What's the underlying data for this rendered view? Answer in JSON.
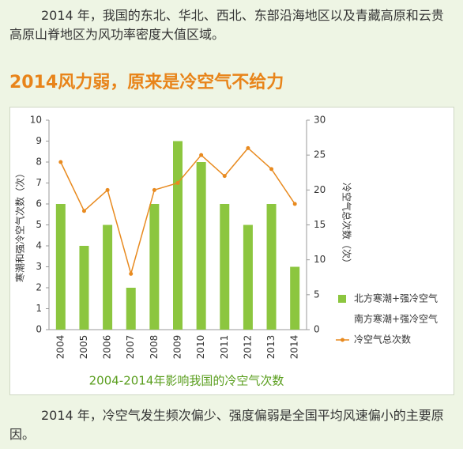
{
  "paragraph_top": "2014 年，我国的东北、华北、西北、东部沿海地区以及青藏高原和云贵高原山脊地区为风功率密度大值区域。",
  "heading": "2014风力弱，原来是冷空气不给力",
  "chart_data": {
    "type": "bar",
    "title": "2004-2014年影响我国的冷空气次数",
    "ylabel": "寒潮和强冷空气次数（次）",
    "y2label": "冷空气总次数（次）",
    "categories": [
      "2004",
      "2005",
      "2006",
      "2007",
      "2008",
      "2009",
      "2010",
      "2011",
      "2012",
      "2013",
      "2014"
    ],
    "series": [
      {
        "name": "北方寒潮+强冷空气",
        "color": "#8cc63f",
        "values": [
          6,
          4,
          5,
          2,
          6,
          9,
          8,
          6,
          5,
          6,
          3
        ]
      },
      {
        "name": "南方寒潮+强冷空气",
        "color": "#ffffff",
        "values": [
          0,
          0,
          0,
          0,
          0,
          0,
          0,
          0,
          0,
          0,
          0
        ]
      },
      {
        "name": "冷空气总次数",
        "color": "#e88a1f",
        "type": "line",
        "axis": "y2",
        "values": [
          24,
          17,
          20,
          8,
          20,
          21,
          25,
          22,
          26,
          23,
          18
        ]
      }
    ],
    "ylim": [
      0,
      10
    ],
    "yticks": [
      0,
      1,
      2,
      3,
      4,
      5,
      6,
      7,
      8,
      9,
      10
    ],
    "y2lim": [
      0,
      30
    ],
    "y2ticks": [
      0,
      5,
      10,
      15,
      20,
      25,
      30
    ]
  },
  "paragraph_bottom": "2014 年，冷空气发生频次偏少、强度偏弱是全国平均风速偏小的主要原因。"
}
